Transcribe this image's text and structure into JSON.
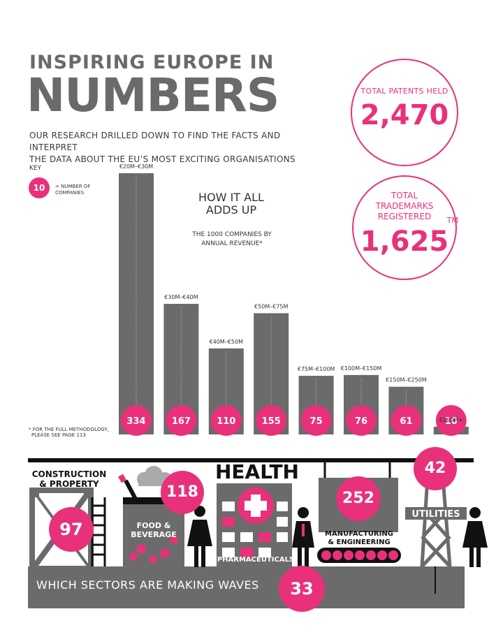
{
  "header": {
    "line1": "INSPIRING EUROPE IN",
    "line2": "NUMBERS",
    "intro_line1": "OUR RESEARCH DRILLED DOWN TO FIND THE FACTS AND INTERPRET",
    "intro_line2": "THE DATA ABOUT THE EU’S MOST EXCITING ORGANISATIONS"
  },
  "stats": {
    "patents": {
      "label": "TOTAL PATENTS HELD",
      "value": "2,470"
    },
    "trademarks": {
      "label_1": "TOTAL",
      "label_2": "TRADEMARKS",
      "label_3": "REGISTERED",
      "value": "1,625",
      "mark": "TM"
    }
  },
  "key": {
    "title": "KEY",
    "sample": "10",
    "text_1": "= NUMBER OF",
    "text_2": "COMPANIES"
  },
  "chart_header": {
    "title_1": "HOW IT ALL",
    "title_2": "ADDS UP",
    "sub_1": "THE 1000 COMPANIES BY",
    "sub_2": "ANNUAL REVENUE*"
  },
  "footnote": {
    "line1": "* FOR THE FULL METHODOLOGY,",
    "line2": "PLEASE SEE PAGE 113"
  },
  "chart_data": {
    "type": "bar",
    "title": "HOW IT ALL ADDS UP",
    "subtitle": "THE 1000 COMPANIES BY ANNUAL REVENUE*",
    "categories": [
      "€20M–€30M",
      "€30M–€40M",
      "€40M–€50M",
      "€50M–€75M",
      "€75M–€100M",
      "€100M–€150M",
      "€150M–€250M",
      "€250M+"
    ],
    "values": [
      334,
      167,
      110,
      155,
      75,
      76,
      61,
      10
    ],
    "xlabel": "",
    "ylabel": "",
    "grid": false,
    "legend": "top-left",
    "bar_color": "#6b6b6b",
    "label_color": "#e8317a"
  },
  "sectors": {
    "heading": "WHICH SECTORS ARE MAKING WAVES",
    "construction": {
      "label_1": "CONSTRUCTION",
      "label_2": "& PROPERTY",
      "value": "97"
    },
    "food": {
      "label_1": "FOOD &",
      "label_2": "BEVERAGE",
      "value": "118"
    },
    "health": {
      "label": "HEALTH",
      "sub": "PHARMACEUTICALS",
      "value": "33"
    },
    "manufacturing": {
      "label_1": "MANUFACTURING",
      "label_2": "& ENGINEERING",
      "value": "252"
    },
    "utilities": {
      "label": "UTILITIES",
      "value": "42"
    }
  },
  "colors": {
    "accent": "#e8317a",
    "grey": "#6b6b6b",
    "dark": "#111111"
  }
}
